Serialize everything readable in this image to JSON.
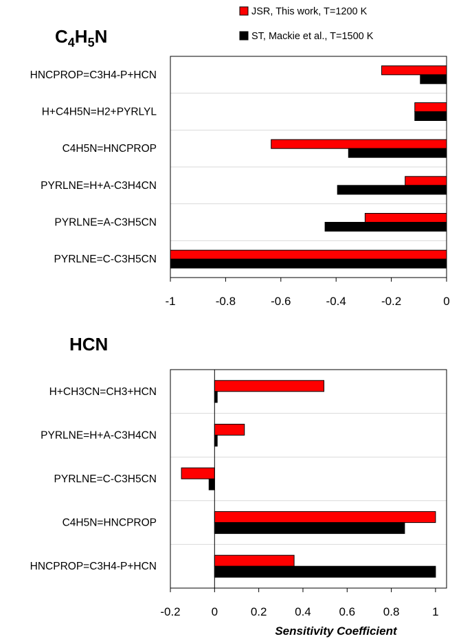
{
  "legend": {
    "jsr_label": "JSR, This work, T=1200 K",
    "st_label": "ST, Mackie et al., T=1500 K"
  },
  "colors": {
    "jsr": "#ff0000",
    "st": "#000000",
    "border": "#000000",
    "grid": "#d9d9d9"
  },
  "chart_data": [
    {
      "type": "bar",
      "orientation": "horizontal",
      "title": "C4H5N",
      "title_parts": [
        {
          "text": "C",
          "sub": false
        },
        {
          "text": "4",
          "sub": true
        },
        {
          "text": "H",
          "sub": false
        },
        {
          "text": "5",
          "sub": true
        },
        {
          "text": "N",
          "sub": false
        }
      ],
      "categories": [
        "HNCPROP=C3H4-P+HCN",
        "H+C4H5N=H2+PYRLYL",
        "C4H5N=HNCPROP",
        "PYRLNE=H+A-C3H4CN",
        "PYRLNE=A-C3H5CN",
        "PYRLNE=C-C3H5CN"
      ],
      "series": [
        {
          "name": "JSR, This work, T=1200 K",
          "key": "jsr",
          "values": [
            -0.235,
            -0.115,
            -0.635,
            -0.15,
            -0.295,
            -1.0
          ]
        },
        {
          "name": "ST, Mackie et al., T=1500 K",
          "key": "st",
          "values": [
            -0.095,
            -0.115,
            -0.355,
            -0.395,
            -0.44,
            -1.0
          ]
        }
      ],
      "xlim": [
        -1,
        0
      ],
      "xticks": [
        -1,
        -0.8,
        -0.6,
        -0.4,
        -0.2,
        0
      ],
      "xtick_labels": [
        "-1",
        "-0.8",
        "-0.6",
        "-0.4",
        "-0.2",
        "0"
      ],
      "xlabel": "",
      "grid": true
    },
    {
      "type": "bar",
      "orientation": "horizontal",
      "title": "HCN",
      "title_parts": [
        {
          "text": "HCN",
          "sub": false
        }
      ],
      "categories": [
        "H+CH3CN=CH3+HCN",
        "PYRLNE=H+A-C3H4CN",
        "PYRLNE=C-C3H5CN",
        "C4H5N=HNCPROP",
        "HNCPROP=C3H4-P+HCN"
      ],
      "series": [
        {
          "name": "JSR, This work, T=1200 K",
          "key": "jsr",
          "values": [
            0.495,
            0.135,
            -0.15,
            1.0,
            0.36
          ]
        },
        {
          "name": "ST, Mackie et al., T=1500 K",
          "key": "st",
          "values": [
            0.012,
            0.012,
            -0.025,
            0.86,
            1.0
          ]
        }
      ],
      "xlim": [
        -0.2,
        1.05
      ],
      "xticks": [
        -0.2,
        0,
        0.2,
        0.4,
        0.6,
        0.8,
        1
      ],
      "xtick_labels": [
        "-0.2",
        "0",
        "0.2",
        "0.4",
        "0.6",
        "0.8",
        "1"
      ],
      "xlabel": "Sensitivity Coefficient",
      "grid": true
    }
  ]
}
